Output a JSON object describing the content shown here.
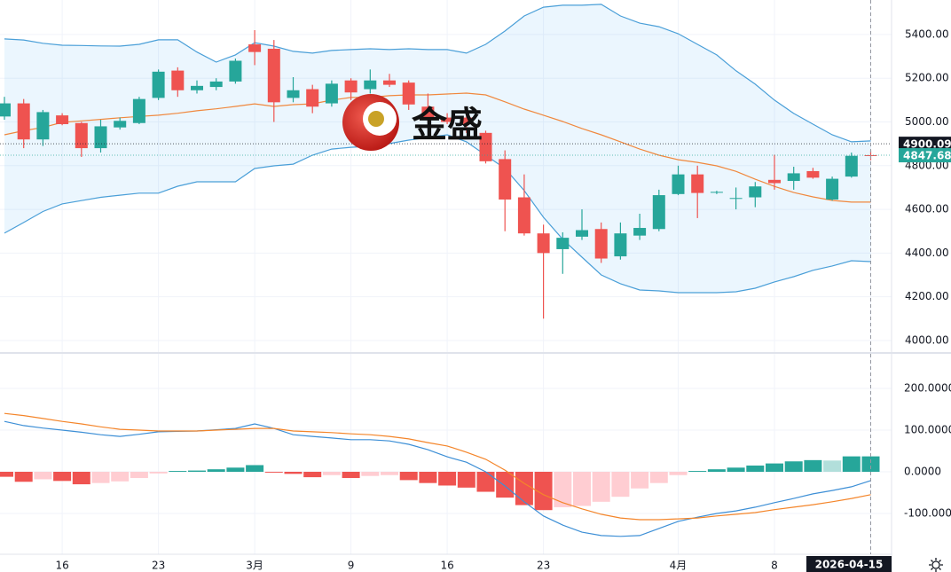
{
  "watermark": "金盛",
  "chart_data": [
    {
      "type": "candlestick",
      "categories": [
        null,
        null,
        null,
        "16",
        null,
        null,
        null,
        null,
        "23",
        null,
        null,
        null,
        null,
        "3月",
        null,
        null,
        null,
        null,
        "9",
        null,
        null,
        null,
        null,
        "16",
        null,
        null,
        null,
        null,
        "23",
        null,
        null,
        null,
        null,
        null,
        null,
        "4月",
        null,
        null,
        null,
        null,
        "8",
        null,
        null,
        null,
        null,
        "2026-04-15"
      ],
      "open": [
        5025,
        5085,
        4920,
        5030,
        4995,
        4880,
        4975,
        4995,
        5110,
        5235,
        5145,
        5160,
        5185,
        5355,
        5335,
        5110,
        5150,
        5085,
        5190,
        5150,
        5190,
        5180,
        5070,
        5020,
        5020,
        4950,
        4830,
        4655,
        4490,
        4418,
        4475,
        4510,
        4385,
        4480,
        4510,
        4670,
        4760,
        4678,
        4650,
        4655,
        4735,
        4730,
        4775,
        4645,
        4750,
        4848
      ],
      "high": [
        5115,
        5105,
        5055,
        5040,
        5000,
        5010,
        5020,
        5115,
        5240,
        5250,
        5190,
        5200,
        5290,
        5420,
        5375,
        5205,
        5170,
        5190,
        5200,
        5240,
        5220,
        5190,
        5130,
        5040,
        5070,
        4960,
        4870,
        4760,
        4530,
        4495,
        4600,
        4540,
        4540,
        4580,
        4690,
        4800,
        4800,
        4685,
        4700,
        4725,
        4850,
        4795,
        4790,
        4750,
        4860,
        4870
      ],
      "low": [
        5010,
        4880,
        4890,
        4985,
        4840,
        4860,
        4965,
        4990,
        5100,
        5115,
        5130,
        5145,
        5175,
        5260,
        5000,
        5090,
        5040,
        5070,
        5100,
        5130,
        5160,
        5055,
        5000,
        4990,
        4950,
        4810,
        4500,
        4480,
        4100,
        4305,
        4460,
        4355,
        4370,
        4460,
        4500,
        4665,
        4560,
        4670,
        4600,
        4610,
        4690,
        4690,
        4740,
        4640,
        4745,
        4825
      ],
      "close": [
        5085,
        4920,
        5045,
        4990,
        4880,
        4980,
        5005,
        5105,
        5230,
        5145,
        5165,
        5185,
        5280,
        5320,
        5090,
        5145,
        5070,
        5175,
        5135,
        5190,
        5170,
        5080,
        5010,
        5000,
        4990,
        4820,
        4645,
        4490,
        4400,
        4470,
        4505,
        4375,
        4490,
        4515,
        4665,
        4760,
        4675,
        4680,
        4652,
        4705,
        4720,
        4765,
        4745,
        4740,
        4845,
        4847.68
      ],
      "up_color": "#26a69a",
      "down_color": "#ef5350",
      "bands": {
        "upper": [
          5380,
          5375,
          5360,
          5351,
          5350,
          5348,
          5347,
          5355,
          5376,
          5376,
          5320,
          5274,
          5307,
          5363,
          5347,
          5323,
          5315,
          5327,
          5331,
          5335,
          5331,
          5335,
          5331,
          5331,
          5315,
          5355,
          5416,
          5485,
          5525,
          5534,
          5534,
          5538,
          5485,
          5452,
          5436,
          5404,
          5355,
          5307,
          5234,
          5173,
          5100,
          5039,
          4990,
          4941,
          4909,
          4913
        ],
        "middle": [
          4941,
          4960,
          4975,
          4998,
          5005,
          5012,
          5019,
          5025,
          5031,
          5040,
          5051,
          5060,
          5071,
          5083,
          5071,
          5079,
          5083,
          5100,
          5112,
          5112,
          5120,
          5124,
          5124,
          5128,
          5132,
          5124,
          5092,
          5059,
          5031,
          5002,
          4970,
          4941,
          4909,
          4876,
          4848,
          4827,
          4815,
          4799,
          4774,
          4738,
          4705,
          4677,
          4657,
          4641,
          4633,
          4633
        ],
        "lower": [
          4491,
          4540,
          4590,
          4625,
          4640,
          4655,
          4665,
          4674,
          4674,
          4706,
          4726,
          4726,
          4726,
          4787,
          4799,
          4807,
          4848,
          4876,
          4884,
          4889,
          4901,
          4917,
          4929,
          4941,
          4909,
          4848,
          4787,
          4686,
          4564,
          4463,
          4381,
          4300,
          4260,
          4231,
          4227,
          4219,
          4219,
          4219,
          4223,
          4239,
          4268,
          4292,
          4321,
          4341,
          4365,
          4361
        ],
        "band_color": "#4a9fd8",
        "middle_color": "#f0883e",
        "fill": "rgba(33,150,243,0.09)"
      },
      "ylim": [
        3947,
        5558
      ],
      "yticks": [
        {
          "value": 4000,
          "label": "4000.00"
        },
        {
          "value": 4200,
          "label": "4200.00"
        },
        {
          "value": 4400,
          "label": "4400.00"
        },
        {
          "value": 4600,
          "label": "4600.00"
        },
        {
          "value": 4800,
          "label": "4800.00"
        },
        {
          "value": 5000,
          "label": "5000.00"
        },
        {
          "value": 5200,
          "label": "5200.00"
        },
        {
          "value": 5400,
          "label": "5400.00"
        }
      ],
      "price_labels": [
        {
          "value": 4900.09,
          "label": "4900.09",
          "color": "#131722"
        },
        {
          "value": 4847.68,
          "label": "4847.68",
          "color": "#26a69a"
        }
      ],
      "grid": true
    },
    {
      "type": "macd",
      "histogram": [
        -12,
        -24,
        -18,
        -22,
        -30,
        -27,
        -23,
        -15,
        -4,
        2,
        3,
        6,
        10,
        16,
        -2,
        -5,
        -13,
        -8,
        -15,
        -10,
        -8,
        -20,
        -27,
        -33,
        -38,
        -48,
        -62,
        -80,
        -92,
        -85,
        -82,
        -72,
        -60,
        -40,
        -27,
        -8,
        2,
        6,
        10,
        15,
        20,
        25,
        28,
        27,
        37,
        37
      ],
      "hist_colors": [
        "#26a69a",
        "#b2dfdb",
        "#ffcdd2",
        "#ef5350"
      ],
      "macd": [
        121,
        111,
        105,
        100,
        95,
        89,
        85,
        90,
        96,
        97,
        98,
        101,
        104,
        115,
        104,
        89,
        85,
        81,
        77,
        77,
        74,
        66,
        53,
        36,
        23,
        0,
        -34,
        -72,
        -106,
        -128,
        -145,
        -153,
        -155,
        -153,
        -136,
        -119,
        -109,
        -100,
        -94,
        -85,
        -74,
        -64,
        -53,
        -45,
        -36,
        -21
      ],
      "signal": [
        140,
        135,
        128,
        121,
        115,
        108,
        102,
        100,
        98,
        98,
        98,
        100,
        102,
        104,
        104,
        98,
        96,
        94,
        91,
        89,
        85,
        79,
        70,
        62,
        47,
        30,
        4,
        -28,
        -55,
        -74,
        -89,
        -102,
        -111,
        -115,
        -115,
        -113,
        -111,
        -106,
        -102,
        -98,
        -91,
        -85,
        -79,
        -72,
        -64,
        -55
      ],
      "macd_color": "#3d8fd6",
      "signal_color": "#f4852a",
      "ylim": [
        -198,
        281
      ],
      "yticks": [
        {
          "value": -100,
          "label": "-100.0000"
        },
        {
          "value": 0,
          "label": "0.0000"
        },
        {
          "value": 100,
          "label": "100.0000"
        },
        {
          "value": 200,
          "label": "200.0000"
        }
      ],
      "grid": true
    }
  ]
}
